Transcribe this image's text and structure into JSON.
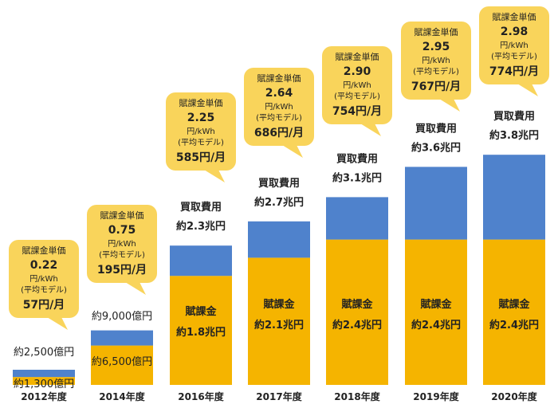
{
  "chart_data": {
    "type": "bar",
    "stacked": true,
    "categories": [
      "2012年度",
      "2014年度",
      "2016年度",
      "2017年度",
      "2018年度",
      "2019年度",
      "2020年度"
    ],
    "series": [
      {
        "values": [
          0.13,
          0.65,
          1.8,
          2.1,
          2.4,
          2.4,
          2.4
        ],
        "color": "#f5b400"
      },
      {
        "values": [
          0.12,
          0.25,
          0.5,
          0.6,
          0.7,
          1.2,
          1.4
        ],
        "color": "#4f82cc"
      }
    ],
    "totals": [
      0.25,
      0.9,
      2.3,
      2.7,
      3.1,
      3.6,
      3.8
    ],
    "ylim": [
      0,
      4.0
    ],
    "bubble_color": "#f9d45b",
    "bubbles": [
      {
        "title": "賦課金単価",
        "value": "0.22",
        "unit": "円/kWh",
        "note": "(平均モデル)",
        "monthly": "57円/月"
      },
      {
        "title": "賦課金単価",
        "value": "0.75",
        "unit": "円/kWh",
        "note": "(平均モデル)",
        "monthly": "195円/月"
      },
      {
        "title": "賦課金単価",
        "value": "2.25",
        "unit": "円/kWh",
        "note": "(平均モデル)",
        "monthly": "585円/月"
      },
      {
        "title": "賦課金単価",
        "value": "2.64",
        "unit": "円/kWh",
        "note": "(平均モデル)",
        "monthly": "686円/月"
      },
      {
        "title": "賦課金単価",
        "value": "2.90",
        "unit": "円/kWh",
        "note": "(平均モデル)",
        "monthly": "754円/月"
      },
      {
        "title": "賦課金単価",
        "value": "2.95",
        "unit": "円/kWh",
        "note": "(平均モデル)",
        "monthly": "767円/月"
      },
      {
        "title": "賦課金単価",
        "value": "2.98",
        "unit": "円/kWh",
        "note": "(平均モデル)",
        "monthly": "774円/月"
      }
    ],
    "purchase_label": "買取費用",
    "levy_label": "賦課金",
    "purchase_amounts": [
      "約2,500億円",
      "約9,000億円",
      "約2.3兆円",
      "約2.7兆円",
      "約3.1兆円",
      "約3.6兆円",
      "約3.8兆円"
    ],
    "levy_amounts": [
      "約1,300億円",
      "約6,500億円",
      "約1.8兆円",
      "約2.1兆円",
      "約2.4兆円",
      "約2.4兆円",
      "約2.4兆円"
    ]
  }
}
